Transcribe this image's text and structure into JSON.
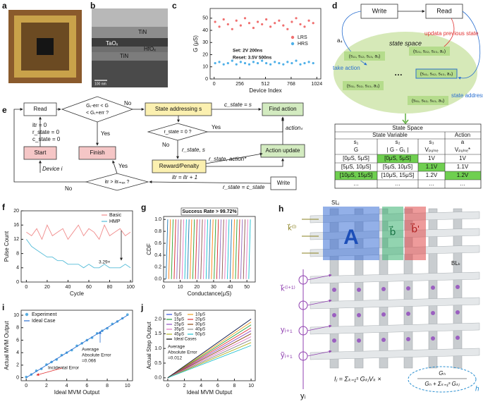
{
  "labels": [
    "a",
    "b",
    "c",
    "d",
    "e",
    "f",
    "g",
    "h",
    "i",
    "j"
  ],
  "b": {
    "layers": [
      "TiN",
      "TaOₓ",
      "HfOₓ",
      "TiN"
    ],
    "scale": "100 nm"
  },
  "chart_data": [
    {
      "type": "scatter",
      "xlabel": "Device Index",
      "ylabel": "G (μS)",
      "xlim": [
        -40,
        1064
      ],
      "xticks": [
        0,
        256,
        512,
        768,
        1024
      ],
      "ylim": [
        0,
        58
      ],
      "yticks": [
        0,
        10,
        20,
        30,
        40,
        50
      ],
      "legend": "center right",
      "annotations": [
        "Set: 2V 200ns",
        "Reset: 3.5V 500ns"
      ],
      "series": [
        {
          "name": "LRS",
          "color": "#f07070",
          "x": [
            10,
            52,
            95,
            138,
            180,
            222,
            265,
            308,
            350,
            392,
            435,
            478,
            520,
            562,
            605,
            648,
            690,
            732,
            775,
            818,
            860,
            902,
            945,
            988
          ],
          "values": [
            47,
            43,
            49,
            45,
            41,
            48,
            44,
            50,
            46,
            42,
            47,
            45,
            49,
            43,
            46,
            48,
            44,
            41,
            47,
            50,
            45,
            43,
            48,
            46
          ]
        },
        {
          "name": "HRS",
          "color": "#4fb0e8",
          "x": [
            10,
            52,
            95,
            138,
            180,
            222,
            265,
            308,
            350,
            392,
            435,
            478,
            520,
            562,
            605,
            648,
            690,
            732,
            775,
            818,
            860,
            902,
            945,
            988
          ],
          "values": [
            13,
            14,
            12,
            13,
            15,
            12,
            14,
            13,
            12,
            14,
            13,
            15,
            13,
            12,
            14,
            13,
            12,
            14,
            13,
            15,
            12,
            13,
            14,
            13
          ]
        }
      ]
    },
    {
      "type": "line",
      "xlabel": "Cycle",
      "ylabel": "Pulse Count",
      "xlim": [
        -5,
        102
      ],
      "xticks": [
        0,
        20,
        40,
        60,
        80,
        100
      ],
      "ylim": [
        0,
        20
      ],
      "yticks": [
        0,
        4,
        8,
        12,
        16,
        20
      ],
      "legend": "upper right",
      "annotations": [
        "3.29×"
      ],
      "x": [
        0,
        5,
        10,
        15,
        20,
        25,
        30,
        35,
        40,
        45,
        50,
        55,
        60,
        65,
        70,
        75,
        80,
        85,
        90,
        95,
        100
      ],
      "series": [
        {
          "name": "Basic",
          "color": "#f08c8c",
          "values": [
            14,
            13,
            15,
            12,
            16,
            13,
            14,
            15,
            12,
            14,
            16,
            13,
            15,
            14,
            12,
            16,
            13,
            14,
            15,
            13,
            14
          ]
        },
        {
          "name": "HMP",
          "color": "#55bcd8",
          "values": [
            12,
            10,
            9,
            8,
            7,
            7,
            6,
            6,
            5,
            5,
            5,
            4,
            5,
            4,
            4,
            5,
            4,
            4,
            4,
            5,
            4
          ]
        }
      ]
    },
    {
      "type": "line",
      "title": "Success Rate > 99.72%",
      "xlabel": "Conductance(μS)",
      "ylabel": "CDF",
      "xlim": [
        0,
        55
      ],
      "xticks": [
        0,
        10,
        20,
        30,
        40,
        50
      ],
      "ylim": [
        -0.05,
        1.05
      ],
      "yticks": [
        {
          "value": 0,
          "label": "0.0"
        },
        0.2,
        0.4,
        0.6,
        0.8,
        {
          "value": 1,
          "label": "1.0"
        }
      ],
      "series": [
        {
          "color": "#1f77b4",
          "x": [
            1.5,
            2.5
          ],
          "values": [
            0,
            1
          ]
        },
        {
          "color": "#ff7f0e",
          "x": [
            3.1,
            4.1
          ],
          "values": [
            0,
            1
          ]
        },
        {
          "color": "#2ca02c",
          "x": [
            4.7,
            5.7
          ],
          "values": [
            0,
            1
          ]
        },
        {
          "color": "#d62728",
          "x": [
            6.3,
            7.3
          ],
          "values": [
            0,
            1
          ]
        },
        {
          "color": "#9467bd",
          "x": [
            7.9,
            8.9
          ],
          "values": [
            0,
            1
          ]
        },
        {
          "color": "#8c564b",
          "x": [
            9.5,
            10.5
          ],
          "values": [
            0,
            1
          ]
        },
        {
          "color": "#e377c2",
          "x": [
            11.1,
            12.1
          ],
          "values": [
            0,
            1
          ]
        },
        {
          "color": "#17becf",
          "x": [
            12.7,
            13.7
          ],
          "values": [
            0,
            1
          ]
        },
        {
          "color": "#1f77b4",
          "x": [
            14.3,
            15.3
          ],
          "values": [
            0,
            1
          ]
        },
        {
          "color": "#ff7f0e",
          "x": [
            15.9,
            16.9
          ],
          "values": [
            0,
            1
          ]
        },
        {
          "color": "#2ca02c",
          "x": [
            17.5,
            18.5
          ],
          "values": [
            0,
            1
          ]
        },
        {
          "color": "#d62728",
          "x": [
            19.1,
            20.1
          ],
          "values": [
            0,
            1
          ]
        },
        {
          "color": "#9467bd",
          "x": [
            20.7,
            21.7
          ],
          "values": [
            0,
            1
          ]
        },
        {
          "color": "#8c564b",
          "x": [
            22.3,
            23.3
          ],
          "values": [
            0,
            1
          ]
        },
        {
          "color": "#e377c2",
          "x": [
            23.9,
            24.9
          ],
          "values": [
            0,
            1
          ]
        },
        {
          "color": "#17becf",
          "x": [
            25.5,
            26.5
          ],
          "values": [
            0,
            1
          ]
        },
        {
          "color": "#1f77b4",
          "x": [
            27.1,
            28.1
          ],
          "values": [
            0,
            1
          ]
        },
        {
          "color": "#ff7f0e",
          "x": [
            28.7,
            29.7
          ],
          "values": [
            0,
            1
          ]
        },
        {
          "color": "#2ca02c",
          "x": [
            30.3,
            31.3
          ],
          "values": [
            0,
            1
          ]
        },
        {
          "color": "#d62728",
          "x": [
            31.9,
            32.9
          ],
          "values": [
            0,
            1
          ]
        },
        {
          "color": "#9467bd",
          "x": [
            33.5,
            34.5
          ],
          "values": [
            0,
            1
          ]
        },
        {
          "color": "#8c564b",
          "x": [
            35.1,
            36.1
          ],
          "values": [
            0,
            1
          ]
        },
        {
          "color": "#e377c2",
          "x": [
            36.7,
            37.7
          ],
          "values": [
            0,
            1
          ]
        },
        {
          "color": "#17becf",
          "x": [
            38.3,
            39.3
          ],
          "values": [
            0,
            1
          ]
        },
        {
          "color": "#1f77b4",
          "x": [
            39.9,
            40.9
          ],
          "values": [
            0,
            1
          ]
        },
        {
          "color": "#ff7f0e",
          "x": [
            41.5,
            42.5
          ],
          "values": [
            0,
            1
          ]
        },
        {
          "color": "#2ca02c",
          "x": [
            43.1,
            44.1
          ],
          "values": [
            0,
            1
          ]
        },
        {
          "color": "#d62728",
          "x": [
            44.7,
            45.7
          ],
          "values": [
            0,
            1
          ]
        },
        {
          "color": "#9467bd",
          "x": [
            46.3,
            47.3
          ],
          "values": [
            0,
            1
          ]
        },
        {
          "color": "#8c564b",
          "x": [
            47.9,
            48.9
          ],
          "values": [
            0,
            1
          ]
        },
        {
          "color": "#e377c2",
          "x": [
            49.5,
            50.5
          ],
          "values": [
            0,
            1
          ]
        },
        {
          "color": "#17becf",
          "x": [
            51.1,
            52.1
          ],
          "values": [
            0,
            1
          ]
        }
      ]
    },
    {
      "type": "scatter",
      "xlabel": "Ideal MVM Output",
      "ylabel": "Actual MVM Output",
      "xlim": [
        -0.5,
        10.5
      ],
      "xticks": [
        0,
        2,
        4,
        6,
        8,
        10
      ],
      "ylim": [
        -0.5,
        10.8
      ],
      "yticks": [
        0,
        2,
        4,
        6,
        8,
        10
      ],
      "legend": "upper left",
      "annotations": [
        "Average",
        "Absolute Error",
        "=0.066",
        "Incidental Error"
      ],
      "series": [
        {
          "name": "Experiment",
          "color": "#5aaee0",
          "x": [
            0,
            0.5,
            1,
            1.5,
            2,
            2.5,
            3,
            3.5,
            4,
            4.5,
            5,
            5.5,
            6,
            6.5,
            7,
            7.5,
            8,
            8.5,
            9,
            9.5,
            10
          ],
          "values": [
            0.1,
            0.5,
            1.1,
            1.4,
            2.1,
            2.5,
            2.9,
            3.6,
            4.0,
            4.4,
            5.1,
            5.5,
            6.0,
            6.4,
            7.1,
            7.5,
            7.9,
            8.6,
            9.0,
            9.5,
            10.1
          ]
        },
        {
          "name": "Ideal Case",
          "color": "#2a6fd0",
          "type": "line",
          "x": [
            0,
            10
          ],
          "values": [
            0,
            10
          ]
        }
      ]
    },
    {
      "type": "line",
      "xlabel": "Ideal MVM Output",
      "ylabel": "Actual Step Output",
      "xlim": [
        -0.5,
        10.5
      ],
      "xticks": [
        0,
        2,
        4,
        6,
        8,
        10
      ],
      "ylim": [
        -0.1,
        2.3
      ],
      "yticks": [
        {
          "value": 0,
          "label": "0.0"
        },
        0.5,
        {
          "value": 1,
          "label": "1.0"
        },
        1.5,
        {
          "value": 2,
          "label": "2.0"
        }
      ],
      "legend": "upper left",
      "annotations": [
        "Average",
        "Absolute Error",
        "=0.012"
      ],
      "x": [
        0,
        10
      ],
      "series": [
        {
          "name": "5μS",
          "color": "#3050e0",
          "values": [
            0,
            2.0
          ]
        },
        {
          "name": "10μS",
          "color": "#f0a020",
          "values": [
            0,
            1.9
          ]
        },
        {
          "name": "15μS",
          "color": "#20a040",
          "values": [
            0,
            1.8
          ]
        },
        {
          "name": "20μS",
          "color": "#e03030",
          "values": [
            0,
            1.7
          ]
        },
        {
          "name": "25μS",
          "color": "#9050c0",
          "values": [
            0,
            1.6
          ]
        },
        {
          "name": "30μS",
          "color": "#8b4513",
          "values": [
            0,
            1.5
          ]
        },
        {
          "name": "35μS",
          "color": "#e070c0",
          "values": [
            0,
            1.4
          ]
        },
        {
          "name": "40μS",
          "color": "#888888",
          "values": [
            0,
            1.3
          ]
        },
        {
          "name": "45μS",
          "color": "#b0b020",
          "values": [
            0,
            1.2
          ]
        },
        {
          "name": "50μS",
          "color": "#20c0d0",
          "values": [
            0,
            1.1
          ]
        },
        {
          "name": "Ideal Cases",
          "color": "#000000",
          "values": [
            0,
            2.0
          ]
        }
      ]
    }
  ],
  "d": {
    "write": "Write",
    "read": "Read",
    "a4": "a₄",
    "update": "updata previous state",
    "take": "take action",
    "space": "state space",
    "addressing": "state addressing",
    "dots": "…",
    "states": [
      "(s₁₁, s₁₂, s₁₃, a₁)",
      "(s₂₁, s₂₂, s₂₃, a₂)",
      "(s₃₁, s₃₂, s₃₃, a₃)",
      "(s₄₁, s₄₂, s₄₃, a₄)",
      "(s₅₁, s₅₂, s₅₃, a₅)"
    ],
    "table": {
      "title": "State Space",
      "groups": [
        "State Variable",
        "Action"
      ],
      "head": [
        "s₁",
        "s₂",
        "s₃",
        "a"
      ],
      "sub": [
        "G",
        "| G - G₁ |",
        "Vₚᵤₗₛₑ",
        "Vₚᵤₗₛₑ*"
      ],
      "rows": [
        [
          "[0μS, 5μS]",
          "[0μS, 5μS]",
          "1V",
          "1V"
        ],
        [
          "[5μS, 10μS]",
          "[5μS, 10μS]",
          "1.1V",
          "1.1V"
        ],
        [
          "[10μS, 15μS]",
          "[10μS, 15μS]",
          "1.2V",
          "1.2V"
        ],
        [
          "…",
          "…",
          "…",
          "…"
        ]
      ]
    }
  },
  "e": {
    "nodes": [
      "Read",
      "Start",
      "Finish",
      "State addressing s",
      "Find action",
      "Action update",
      "Reward/Penalty",
      "Write"
    ],
    "decisions": [
      [
        "Gₜ-err < G",
        "< Gₜ+err ?"
      ],
      [
        "r_state = 0 ?"
      ],
      [
        "itr > itrₘₐₓ ?"
      ]
    ],
    "notes": [
      "itr = 0",
      "r_state = 0",
      "c_state = 0",
      "Device i",
      "No",
      "Yes",
      "c_state = s",
      "Yes",
      "No",
      "r_state, s",
      "actionₛ",
      "r_state, action*",
      "Yes",
      "No",
      "itr = itr + 1",
      "r_state = c_state"
    ]
  },
  "h": {
    "sl": "SLⱼ",
    "bl": "BLₖ",
    "A": "A",
    "b": "b⃗",
    "b2": "b⃗'",
    "k": "k⃗⁽ˡ⁾",
    "k1": "k⃗⁽ˡ⁺¹⁾",
    "y1": "yᵢ₊₁",
    "yt": "ỹᵢ₊₁",
    "y": "yᵢ",
    "formula": "Iⱼ = Σₖ₌₁ˢ GₖⱼVₖ ×",
    "top": "Gₕ",
    "bottom": "Gₕ + Σₖ₌₁ˢ Gₖⱼ",
    "hl": "h"
  }
}
